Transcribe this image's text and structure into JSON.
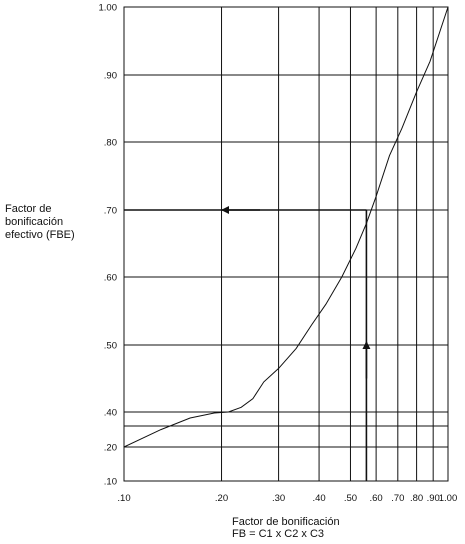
{
  "chart_data": {
    "type": "line",
    "x_scale": "log",
    "y_scale": "nonlinear",
    "grid": true,
    "ylabel_lines": [
      "Factor de",
      "bonificación",
      "efectivo (FBE)"
    ],
    "xlabel_lines": [
      "Factor de bonificación",
      "FB = C1 x C2 x C3"
    ],
    "x_ticks": [
      {
        "value": 0.1,
        "label": ".10"
      },
      {
        "value": 0.2,
        "label": ".20"
      },
      {
        "value": 0.3,
        "label": ".30"
      },
      {
        "value": 0.4,
        "label": ".40"
      },
      {
        "value": 0.5,
        "label": ".50"
      },
      {
        "value": 0.6,
        "label": ".60"
      },
      {
        "value": 0.7,
        "label": ".70"
      },
      {
        "value": 0.8,
        "label": ".80"
      },
      {
        "value": 0.9,
        "label": ".90"
      },
      {
        "value": 1.0,
        "label": "1.00"
      }
    ],
    "y_ticks": [
      {
        "value": 0.1,
        "label": ".10"
      },
      {
        "value": 0.2,
        "label": ".20"
      },
      {
        "value": 0.4,
        "label": ".40"
      },
      {
        "value": 0.5,
        "label": ".50"
      },
      {
        "value": 0.6,
        "label": ".60"
      },
      {
        "value": 0.7,
        "label": ".70"
      },
      {
        "value": 0.8,
        "label": ".80"
      },
      {
        "value": 0.9,
        "label": ".90"
      },
      {
        "value": 1.0,
        "label": "1.00"
      }
    ],
    "y_grid_extra": [
      0.3
    ],
    "series": [
      {
        "x": [
          0.1,
          0.13,
          0.16,
          0.19,
          0.21,
          0.23,
          0.25,
          0.27,
          0.3,
          0.34,
          0.38,
          0.42,
          0.47,
          0.52,
          0.56,
          0.6,
          0.66,
          0.72,
          0.8,
          0.88,
          1.0
        ],
        "y": [
          0.2,
          0.283,
          0.357,
          0.393,
          0.4,
          0.407,
          0.42,
          0.445,
          0.465,
          0.495,
          0.53,
          0.56,
          0.6,
          0.643,
          0.68,
          0.72,
          0.78,
          0.82,
          0.875,
          0.92,
          1.0
        ]
      }
    ],
    "example_path": {
      "fb": 0.56,
      "fbe": 0.7
    }
  }
}
